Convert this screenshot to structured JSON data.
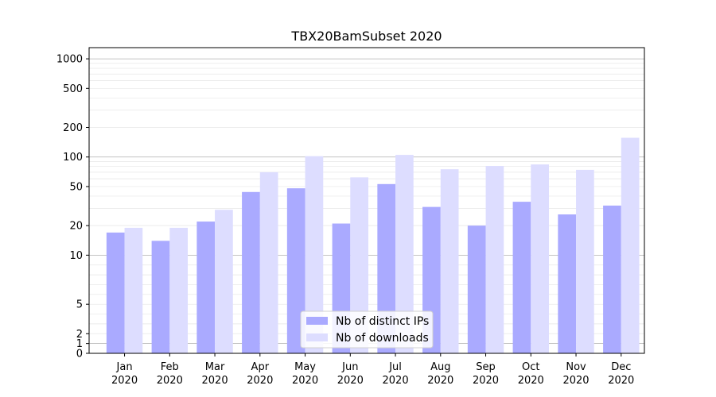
{
  "chart_data": {
    "type": "bar",
    "title": "TBX20BamSubset 2020",
    "xlabel": "",
    "ylabel": "",
    "yscale": "symlog",
    "ylim": [
      0,
      1300
    ],
    "yticks": [
      0,
      1,
      2,
      5,
      10,
      20,
      50,
      100,
      200,
      500,
      1000
    ],
    "categories": [
      {
        "month": "Jan",
        "year": "2020"
      },
      {
        "month": "Feb",
        "year": "2020"
      },
      {
        "month": "Mar",
        "year": "2020"
      },
      {
        "month": "Apr",
        "year": "2020"
      },
      {
        "month": "May",
        "year": "2020"
      },
      {
        "month": "Jun",
        "year": "2020"
      },
      {
        "month": "Jul",
        "year": "2020"
      },
      {
        "month": "Aug",
        "year": "2020"
      },
      {
        "month": "Sep",
        "year": "2020"
      },
      {
        "month": "Oct",
        "year": "2020"
      },
      {
        "month": "Nov",
        "year": "2020"
      },
      {
        "month": "Dec",
        "year": "2020"
      }
    ],
    "series": [
      {
        "name": "Nb of distinct IPs",
        "color": "#aaaaff",
        "values": [
          17,
          14,
          22,
          44,
          48,
          21,
          53,
          31,
          20,
          35,
          26,
          32
        ]
      },
      {
        "name": "Nb of downloads",
        "color": "#ddddff",
        "values": [
          19,
          19,
          29,
          70,
          102,
          62,
          105,
          75,
          81,
          84,
          74,
          157
        ]
      }
    ],
    "grid": true,
    "legend_position": "bottom-center"
  }
}
